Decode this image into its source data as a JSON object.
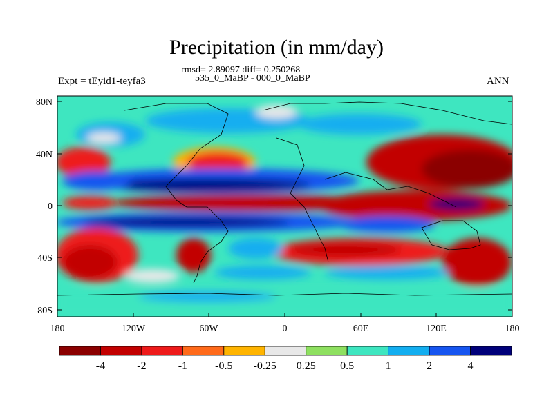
{
  "title": "Precipitation (in mm/day)",
  "stats_line": "rmsd= 2.89097 diff= 0.250268",
  "case_line": "535_0_MaBP - 000_0_MaBP",
  "expt_label": "Expt = tEyid1-teyfa3",
  "period_label": "ANN",
  "map": {
    "lat_labels": [
      "80N",
      "40N",
      "0",
      "40S",
      "80S"
    ],
    "lon_labels": [
      "180",
      "120W",
      "60W",
      "0",
      "60E",
      "120E",
      "180"
    ]
  },
  "colorbar": {
    "colors": [
      "#8b0000",
      "#c20000",
      "#ee1a1a",
      "#ff6a1a",
      "#ffb400",
      "#e8e8e8",
      "#8ee060",
      "#3ee6c0",
      "#13aef0",
      "#1655f0",
      "#00007a"
    ],
    "tick_labels": [
      "-4",
      "-2",
      "-1",
      "-0.5",
      "-0.25",
      "0.25",
      "0.5",
      "1",
      "2",
      "4"
    ]
  }
}
